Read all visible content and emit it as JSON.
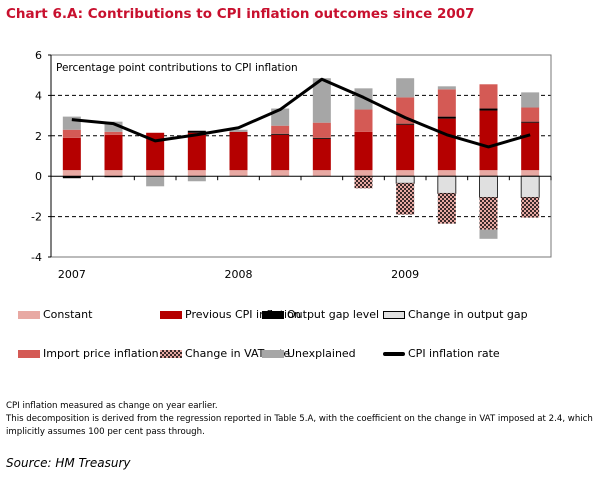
{
  "title": "Chart 6.A: Contributions to CPI inflation outcomes since 2007",
  "chart_data": {
    "type": "bar",
    "stacked": true,
    "subtitle": "Percentage point contributions to CPI inflation",
    "ylim": [
      -4,
      6
    ],
    "y_ticks": [
      "-4",
      "-2",
      "0",
      "2",
      "4",
      "6"
    ],
    "x_tick_labels": [
      {
        "label": "2007",
        "bar_index": 0
      },
      {
        "label": "2008",
        "bar_index": 4
      },
      {
        "label": "2009",
        "bar_index": 8
      }
    ],
    "grid": "dashed horizontal at 2, 4, -2",
    "series": [
      {
        "name": "Constant",
        "color": "#e8a9a3",
        "values": [
          0.3,
          0.3,
          0.3,
          0.3,
          0.3,
          0.3,
          0.3,
          0.3,
          0.3,
          0.3,
          0.3,
          0.3
        ]
      },
      {
        "name": "Previous CPI inflation",
        "color": "#b50000",
        "values": [
          1.6,
          1.75,
          1.85,
          1.85,
          1.9,
          1.75,
          1.55,
          1.9,
          2.25,
          2.55,
          2.95,
          2.35
        ]
      },
      {
        "name": "Output gap level",
        "color": "#000000",
        "values": [
          -0.1,
          -0.05,
          0,
          0.1,
          0,
          0.05,
          0.05,
          0,
          0.05,
          0.1,
          0.1,
          0.05
        ]
      },
      {
        "name": "Change in output gap",
        "color": "#e0e0e0",
        "values": [
          0,
          0,
          0,
          0,
          0,
          0,
          0,
          0,
          -0.35,
          -0.85,
          -1.05,
          -1.05
        ]
      },
      {
        "name": "Import price inflation",
        "color": "#d45a55",
        "values": [
          0.4,
          0.15,
          0,
          0,
          0,
          0.4,
          0.75,
          1.1,
          1.3,
          1.35,
          1.2,
          0.7
        ]
      },
      {
        "name": "Change in VAT rate",
        "color": "pattern",
        "values": [
          0,
          0,
          0,
          0,
          0,
          0,
          0,
          -0.6,
          -1.55,
          -1.5,
          -1.6,
          -1.0
        ]
      },
      {
        "name": "Unexplained",
        "color": "#a6a6a6",
        "values": [
          0.65,
          0.5,
          -0.5,
          -0.25,
          0.1,
          0.85,
          2.2,
          1.05,
          0.95,
          0.15,
          -0.45,
          0.75
        ]
      }
    ],
    "line": {
      "name": "CPI inflation rate",
      "color": "#000000",
      "values": [
        2.8,
        2.6,
        1.75,
        2.05,
        2.4,
        3.3,
        4.8,
        3.9,
        2.9,
        2.05,
        1.45,
        2.05
      ]
    },
    "legend_position": "bottom"
  },
  "notes": [
    "CPI inflation measured as change on year earlier.",
    "This decomposition is derived from the regression reported in Table 5.A, with the coefficient on the change in VAT imposed at 2.4, which implicitly assumes 100 per cent pass through."
  ],
  "source": "Source:  HM Treasury"
}
